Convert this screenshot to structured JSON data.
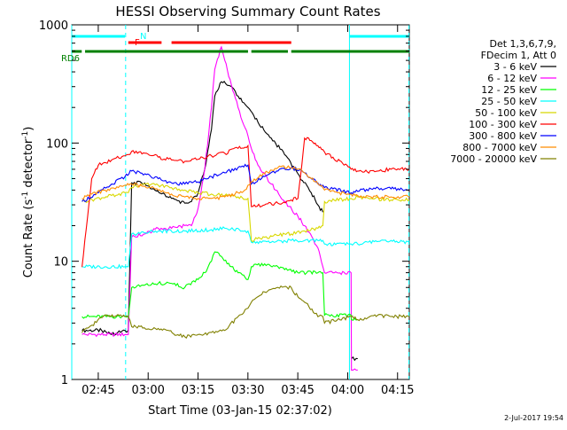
{
  "chart_data": {
    "type": "line",
    "title": "HESSI Observing Summary Count Rates",
    "xlabel": "Start Time (03-Jan-15 02:37:02)",
    "ylabel": "Count Rate (s",
    "ylabel_sup": "-1",
    "ylabel_tail": " detector",
    "ylabel_end": ")",
    "x_unit": "minutes after 02:37:02 UT (03-Jan-15)",
    "xlim": [
      0,
      101.5
    ],
    "ylim": [
      1,
      1000
    ],
    "y_scale": "log",
    "x_ticks": [
      {
        "t": 7.97,
        "label": "02:45"
      },
      {
        "t": 22.97,
        "label": "03:00"
      },
      {
        "t": 37.97,
        "label": "03:15"
      },
      {
        "t": 52.97,
        "label": "03:30"
      },
      {
        "t": 67.97,
        "label": "03:45"
      },
      {
        "t": 82.97,
        "label": "04:00"
      },
      {
        "t": 97.97,
        "label": "04:15"
      }
    ],
    "y_ticks": [
      {
        "v": 1,
        "label": "1"
      },
      {
        "v": 10,
        "label": "10"
      },
      {
        "v": 100,
        "label": "100"
      },
      {
        "v": 1000,
        "label": "1000"
      }
    ],
    "legend_header": [
      "Det 1,3,6,7,9,",
      "FDecim 1, Att 0"
    ],
    "legend_placement": "right",
    "series": [
      {
        "name": "3 - 6 keV",
        "color": "#000000",
        "x": [
          0,
          3,
          3.1,
          9,
          12,
          16,
          17,
          18,
          21,
          25,
          30,
          34,
          35,
          36,
          38,
          40,
          42,
          43,
          45,
          48,
          50,
          53,
          56,
          60,
          64,
          68,
          72,
          74,
          75.5,
          76,
          84,
          84.1,
          86
        ],
        "y": [
          null,
          null,
          2.6,
          2.6,
          2.4,
          2.6,
          2.6,
          46,
          46,
          40,
          34,
          31,
          31,
          32,
          38,
          60,
          130,
          250,
          330,
          300,
          250,
          200,
          150,
          110,
          80,
          55,
          38,
          30,
          26,
          null,
          null,
          1.5,
          1.5
        ]
      },
      {
        "name": "6 - 12 keV",
        "color": "#ff00ff",
        "x": [
          0,
          3,
          3.1,
          16,
          17,
          18,
          22,
          26,
          30,
          34,
          36,
          38,
          40,
          42,
          43,
          45,
          46,
          48,
          50,
          53,
          54,
          56,
          60,
          64,
          68,
          70,
          74,
          75.5,
          76,
          84,
          84.1,
          86
        ],
        "y": [
          null,
          null,
          2.4,
          2.4,
          2.4,
          16,
          17,
          19,
          19,
          20,
          20,
          28,
          60,
          200,
          420,
          650,
          500,
          310,
          200,
          115,
          90,
          65,
          45,
          32,
          24,
          20,
          13,
          9,
          8,
          8,
          1.2,
          1.2
        ]
      },
      {
        "name": "12 - 25 keV",
        "color": "#00ff00",
        "x": [
          0,
          3,
          3.1,
          16,
          17,
          18,
          26,
          30,
          34,
          38,
          40,
          42,
          43,
          45,
          48,
          50,
          53,
          54,
          58,
          62,
          64,
          68,
          74,
          75.5,
          76,
          84,
          84.1,
          86
        ],
        "y": [
          null,
          null,
          3.4,
          3.4,
          3.4,
          6,
          6.5,
          6.5,
          6,
          7,
          8,
          10,
          12,
          11,
          9,
          8,
          7,
          9,
          9.5,
          9,
          8.5,
          8,
          8,
          8,
          3.5,
          3.5,
          3.2,
          3.2
        ]
      },
      {
        "name": "25 - 50 keV",
        "color": "#00ffff",
        "x": [
          0,
          3,
          3.1,
          16,
          17,
          18,
          26,
          34,
          42,
          46,
          53,
          54,
          60,
          66,
          70,
          74,
          75.5,
          76,
          84,
          86,
          88,
          96,
          101.5
        ],
        "y": [
          null,
          null,
          9,
          9,
          9,
          17,
          18,
          18,
          18.5,
          19,
          18,
          14.5,
          14.5,
          15,
          15,
          15,
          15,
          14,
          14,
          14,
          14.5,
          15,
          14.5
        ]
      },
      {
        "name": "50 - 100 keV",
        "color": "#d8d800",
        "x": [
          0,
          3,
          3.1,
          12,
          16,
          17,
          18,
          22,
          26,
          30,
          34,
          38,
          42,
          46,
          50,
          53,
          54,
          58,
          62,
          64,
          66,
          70,
          74,
          75.5,
          76,
          84,
          86,
          90,
          96,
          101.5
        ],
        "y": [
          null,
          null,
          32,
          36,
          38,
          38,
          42,
          45,
          44,
          42,
          40,
          38,
          37,
          36,
          35,
          34,
          15,
          16,
          16.5,
          17,
          17,
          18,
          19,
          20,
          32,
          34,
          35,
          34,
          33,
          33
        ]
      },
      {
        "name": "100 - 300 keV",
        "color": "#ff0000",
        "x": [
          0,
          3,
          3.1,
          6,
          8,
          12,
          16,
          17,
          18,
          22,
          26,
          30,
          34,
          38,
          42,
          46,
          50,
          53,
          54,
          58,
          62,
          66,
          68,
          70,
          72,
          74,
          75.5,
          76,
          84,
          86,
          88,
          92,
          96,
          101.5
        ],
        "y": [
          null,
          9,
          9,
          50,
          65,
          72,
          78,
          80,
          85,
          82,
          76,
          72,
          70,
          73,
          78,
          82,
          90,
          95,
          29,
          30,
          31,
          33,
          34,
          110,
          105,
          95,
          88,
          84,
          60,
          58,
          57,
          58,
          60,
          60
        ]
      },
      {
        "name": "300 - 800 keV",
        "color": "#0000ff",
        "x": [
          0,
          3,
          3.1,
          8,
          12,
          16,
          18,
          22,
          26,
          30,
          34,
          38,
          42,
          46,
          50,
          53,
          54,
          58,
          62,
          66,
          70,
          74,
          75.5,
          76,
          84,
          86,
          90,
          96,
          101.5
        ],
        "y": [
          null,
          null,
          32,
          38,
          45,
          52,
          58,
          55,
          50,
          46,
          45,
          47,
          52,
          56,
          62,
          65,
          45,
          52,
          58,
          62,
          56,
          46,
          44,
          42,
          38,
          39,
          41,
          41,
          40
        ]
      },
      {
        "name": "800 - 7000 keV",
        "color": "#ff8c00",
        "x": [
          0,
          3,
          3.1,
          6,
          10,
          14,
          16,
          18,
          22,
          26,
          30,
          34,
          38,
          42,
          46,
          50,
          52,
          53,
          54,
          58,
          62,
          66,
          68,
          70,
          72,
          74,
          75.5,
          76,
          80,
          84,
          86,
          90,
          96,
          101.5
        ],
        "y": [
          null,
          null,
          34,
          37,
          40,
          42,
          44,
          45,
          43,
          40,
          37,
          35,
          34,
          34,
          35,
          38,
          40,
          44,
          47,
          55,
          62,
          62,
          60,
          56,
          50,
          45,
          42,
          40,
          38,
          37,
          36,
          35,
          35,
          35
        ]
      },
      {
        "name": "7000 - 20000 keV",
        "color": "#808000",
        "x": [
          0,
          3,
          3.1,
          10,
          16,
          17,
          18,
          26,
          34,
          38,
          42,
          46,
          50,
          53,
          54,
          58,
          62,
          66,
          68,
          70,
          74,
          75.5,
          76,
          84,
          86,
          92,
          96,
          101.5
        ],
        "y": [
          null,
          2.5,
          2.5,
          3.5,
          3.4,
          3.4,
          2.8,
          2.7,
          2.3,
          2.4,
          2.5,
          2.6,
          3.4,
          4,
          4.5,
          5.5,
          6,
          6,
          5,
          4.5,
          3.4,
          3.4,
          3,
          3.4,
          3.2,
          3.5,
          3.4,
          3.4
        ]
      }
    ],
    "flag_bars": [
      {
        "label": "N",
        "color": "#00ffff",
        "segments": [
          [
            0,
            16
          ],
          [
            83.5,
            101.5
          ]
        ]
      },
      {
        "label": "F",
        "color": "#ff0000",
        "segments": [
          [
            17,
            27
          ],
          [
            30,
            66
          ]
        ]
      },
      {
        "label": "RD6",
        "color": "#008000",
        "segments": [
          [
            0,
            3
          ],
          [
            4,
            53
          ],
          [
            54,
            65
          ],
          [
            66,
            101.5
          ]
        ]
      }
    ],
    "vlines": [
      {
        "t": 0,
        "color": "#00ffff",
        "style": "solid"
      },
      {
        "t": 16.2,
        "color": "#00ffff",
        "style": "dashed"
      },
      {
        "t": 83.5,
        "color": "#00ffff",
        "style": "solid"
      },
      {
        "t": 101.4,
        "color": "#00ffff",
        "style": "dashed"
      }
    ],
    "timestamp": "2-Jul-2017 19:54"
  }
}
